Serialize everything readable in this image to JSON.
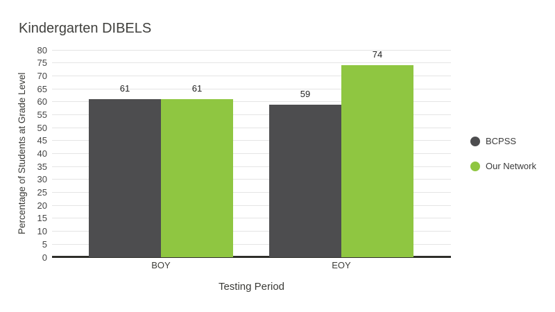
{
  "title": "Kindergarten DIBELS",
  "chart_data": {
    "type": "bar",
    "title": "Kindergarten DIBELS",
    "categories": [
      "BOY",
      "EOY"
    ],
    "series": [
      {
        "name": "BCPSS",
        "color": "#4d4d4f",
        "values": [
          61,
          59
        ]
      },
      {
        "name": "Our Network",
        "color": "#8fc641",
        "values": [
          61,
          74
        ]
      }
    ],
    "xlabel": "Testing Period",
    "ylabel": "Percentage of Students at Grade Level",
    "ylim": [
      0,
      80
    ],
    "ytick_step": 5,
    "yticks": [
      0,
      5,
      10,
      15,
      20,
      25,
      30,
      35,
      40,
      45,
      50,
      55,
      60,
      65,
      70,
      75,
      80
    ],
    "grid": true,
    "legend_position": "right",
    "value_labels": [
      {
        "category": "BOY",
        "series": "BCPSS",
        "label": "61"
      },
      {
        "category": "BOY",
        "series": "Our Network",
        "label": "61"
      },
      {
        "category": "EOY",
        "series": "BCPSS",
        "label": "59"
      },
      {
        "category": "EOY",
        "series": "Our Network",
        "label": "74"
      }
    ]
  },
  "colors": {
    "background": "#ffffff",
    "grid": "#e4e4e4",
    "axis": "#2e2e29",
    "title_text": "#3f3f3c",
    "tick_text": "#444444",
    "value_label_text": "#212121"
  }
}
